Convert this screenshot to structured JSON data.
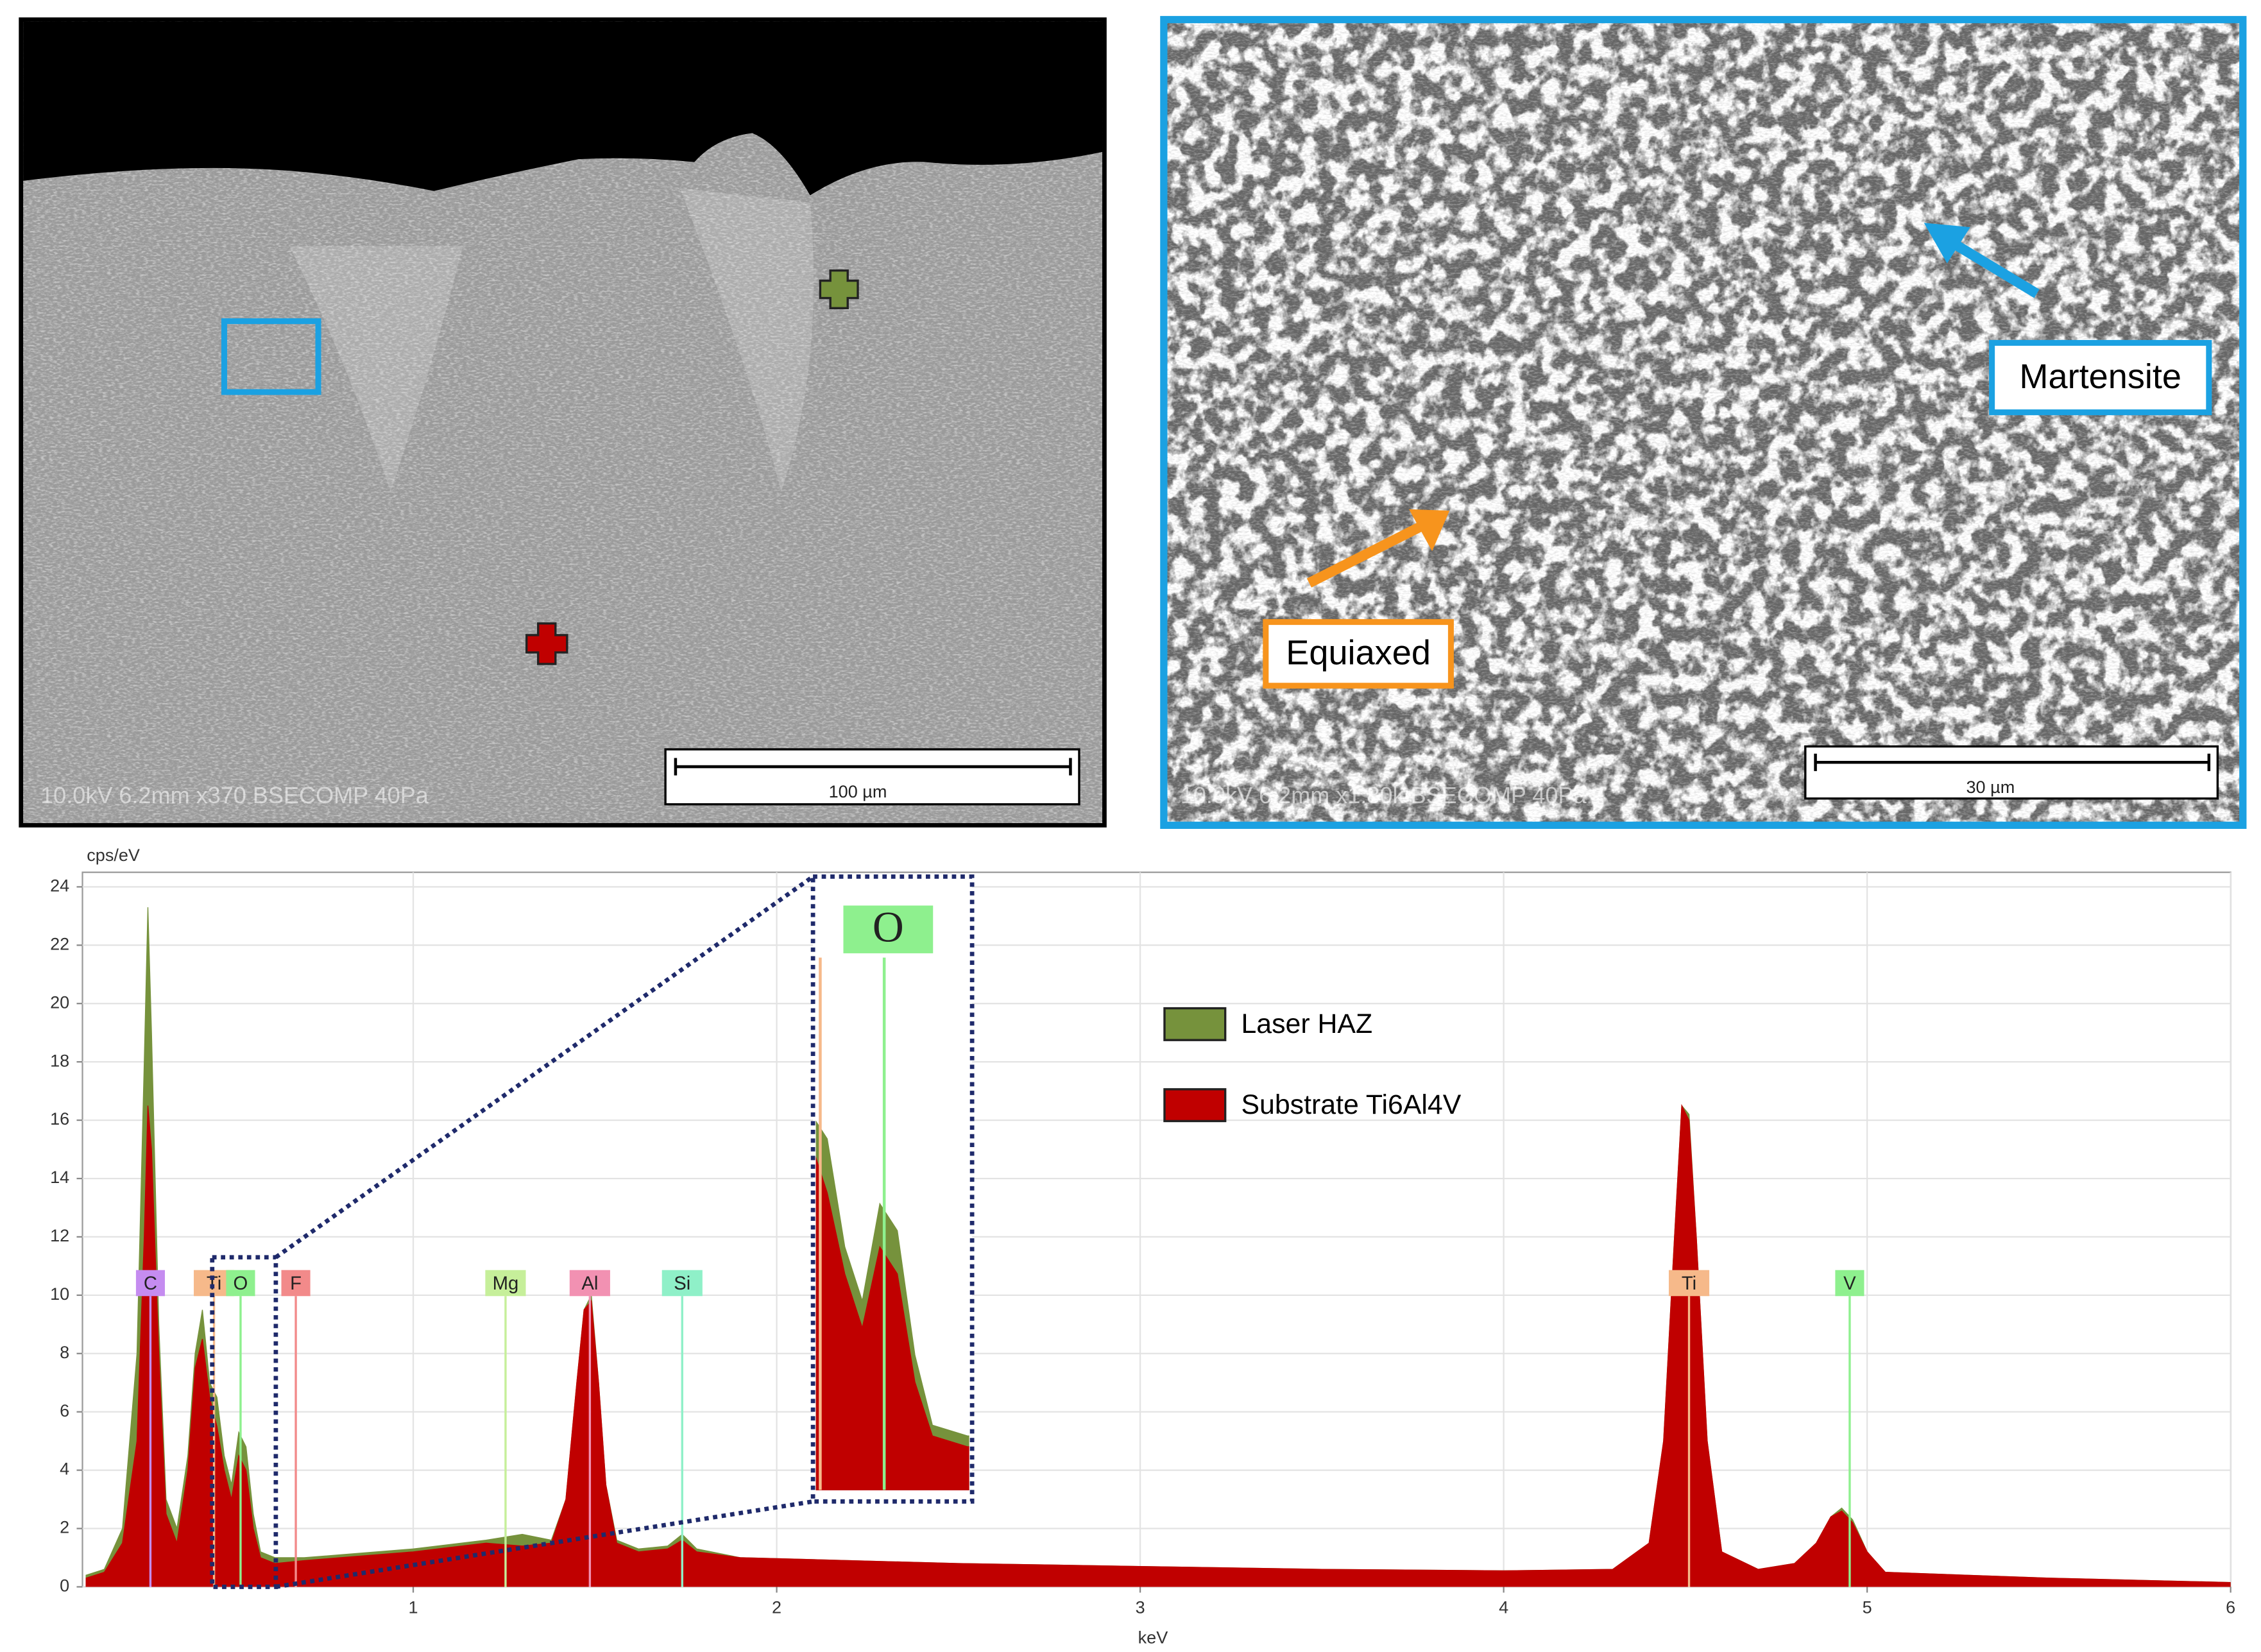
{
  "images": [
    {
      "scale_bar": "100 µm",
      "caption": "10.0kV 6.2mm x370 BSECOMP 40Pa"
    },
    {
      "scale_bar": "30 µm",
      "caption": "10.0kV 6.2mm x1.80k BSECOMP 40Pa",
      "annotations": [
        "Martensite",
        "Equiaxed"
      ]
    }
  ],
  "chart_data": {
    "type": "area",
    "ylabel": "cps/eV",
    "xlabel": "keV",
    "xlim": [
      0.09,
      6
    ],
    "ylim": [
      0,
      24.5
    ],
    "xticks": [
      1,
      2,
      3,
      4,
      5,
      6
    ],
    "yticks": [
      0,
      2,
      4,
      6,
      8,
      10,
      12,
      14,
      16,
      18,
      20,
      22,
      24
    ],
    "grid": true,
    "legend": "upper right",
    "x": [
      0.1,
      0.15,
      0.2,
      0.24,
      0.26,
      0.27,
      0.28,
      0.3,
      0.32,
      0.35,
      0.38,
      0.4,
      0.42,
      0.44,
      0.46,
      0.48,
      0.5,
      0.52,
      0.54,
      0.56,
      0.58,
      0.62,
      0.7,
      0.8,
      1.0,
      1.2,
      1.3,
      1.38,
      1.42,
      1.45,
      1.47,
      1.49,
      1.51,
      1.53,
      1.56,
      1.62,
      1.7,
      1.74,
      1.78,
      1.9,
      2.5,
      3.0,
      3.5,
      4.0,
      4.3,
      4.4,
      4.44,
      4.47,
      4.49,
      4.51,
      4.53,
      4.56,
      4.6,
      4.7,
      4.8,
      4.86,
      4.9,
      4.93,
      4.96,
      5.0,
      5.05,
      5.5,
      6.0
    ],
    "series": [
      {
        "name": "Laser HAZ",
        "color": "#76923c",
        "values": [
          0.4,
          0.6,
          2,
          8,
          18,
          23.3,
          19,
          9,
          3,
          2,
          4.5,
          8,
          9.5,
          7,
          6.5,
          4.5,
          3.5,
          5.3,
          4.8,
          2.5,
          1.2,
          1.0,
          1.0,
          1.1,
          1.3,
          1.6,
          1.8,
          1.6,
          3,
          7,
          9.5,
          10,
          7,
          3.5,
          1.6,
          1.3,
          1.4,
          1.8,
          1.3,
          1.0,
          0.8,
          0.7,
          0.6,
          0.55,
          0.6,
          1.5,
          5,
          12,
          16.5,
          16.2,
          12,
          5,
          1.2,
          0.6,
          0.8,
          1.5,
          2.4,
          2.7,
          2.3,
          1.2,
          0.5,
          0.3,
          0.15
        ]
      },
      {
        "name": "Substrate Ti6Al4V",
        "color": "#c00000",
        "values": [
          0.3,
          0.5,
          1.5,
          5,
          12,
          16.5,
          15,
          8,
          2.5,
          1.5,
          4,
          7.5,
          8.5,
          6.5,
          5.5,
          4,
          3,
          4.5,
          4,
          2,
          1,
          0.8,
          0.9,
          1.0,
          1.2,
          1.5,
          1.4,
          1.5,
          3,
          7,
          9.5,
          9.8,
          7,
          3.5,
          1.5,
          1.2,
          1.3,
          1.6,
          1.2,
          1.0,
          0.8,
          0.7,
          0.6,
          0.55,
          0.6,
          1.5,
          5,
          12,
          16.5,
          16,
          12,
          5,
          1.2,
          0.6,
          0.8,
          1.5,
          2.4,
          2.6,
          2.2,
          1.2,
          0.5,
          0.3,
          0.15
        ]
      }
    ],
    "peak_labels": [
      {
        "label": "C",
        "x": 0.277,
        "color": "#c58cf0"
      },
      {
        "label": "Ti",
        "x": 0.452,
        "color": "#f6b98a"
      },
      {
        "label": "O",
        "x": 0.525,
        "color": "#8ef08e"
      },
      {
        "label": "F",
        "x": 0.677,
        "color": "#f28a8a"
      },
      {
        "label": "Mg",
        "x": 1.254,
        "color": "#c6ef9a"
      },
      {
        "label": "Al",
        "x": 1.486,
        "color": "#f291b2"
      },
      {
        "label": "Si",
        "x": 1.74,
        "color": "#8ff0c8"
      },
      {
        "label": "Ti",
        "x": 4.51,
        "color": "#f6b98a"
      },
      {
        "label": "V",
        "x": 4.952,
        "color": "#8ef08e"
      }
    ],
    "zoom": {
      "label": "O",
      "xlim": [
        0.447,
        0.622
      ],
      "ylim": [
        0,
        11.3
      ]
    }
  }
}
